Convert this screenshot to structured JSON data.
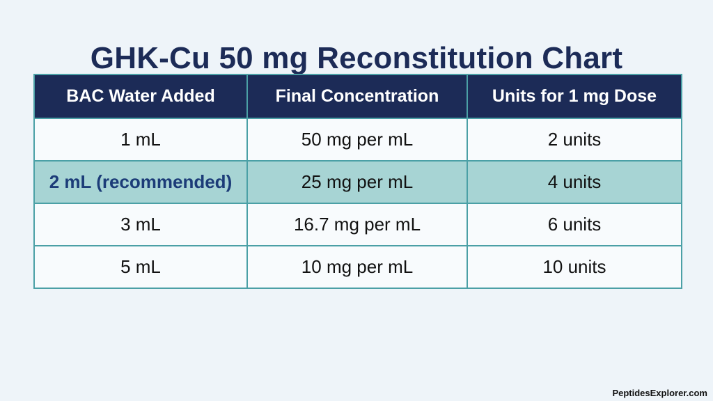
{
  "title": "GHK-Cu 50 mg Reconstitution Chart",
  "table": {
    "headers": [
      "BAC Water Added",
      "Final Concentration",
      "Units for 1 mg Dose"
    ],
    "rows": [
      [
        "1 mL",
        "50 mg per mL",
        "2 units"
      ],
      [
        "2 mL (recommended)",
        "25 mg per mL",
        "4 units"
      ],
      [
        "3 mL",
        "16.7 mg per mL",
        "6 units"
      ],
      [
        "5 mL",
        "10 mg per mL",
        "10 units"
      ]
    ],
    "highlighted_row": 1
  },
  "footer": "PeptidesExplorer.com",
  "colors": {
    "header_bg": "#1c2b57",
    "highlight_row_bg": "#a7d4d4",
    "border": "#4ba0a6",
    "page_bg": "#eef4f9"
  }
}
